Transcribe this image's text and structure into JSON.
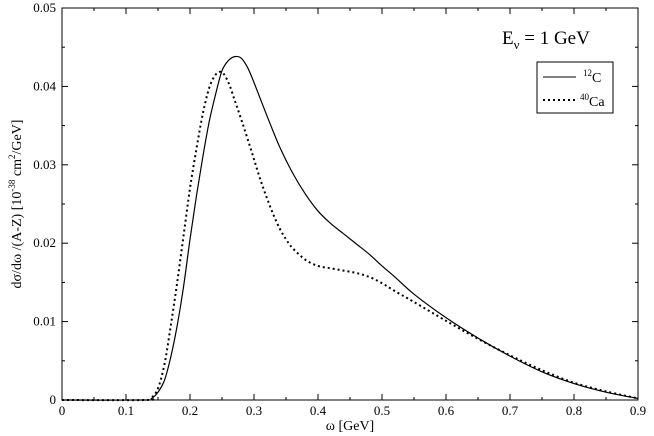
{
  "chart_data": {
    "type": "line",
    "title": "",
    "annotation": {
      "main": "E",
      "sub": "ν",
      "rest": " = 1 GeV"
    },
    "xlabel": "ω [GeV]",
    "ylabel": {
      "part1": "dσ/dω /(A-Z) [10",
      "exp1": "-38",
      "part2": " cm",
      "exp2": "2",
      "part3": "/GeV]"
    },
    "xlim": [
      0,
      0.9
    ],
    "ylim": [
      0,
      0.05
    ],
    "xticks": [
      "0",
      "0.1",
      "0.2",
      "0.3",
      "0.4",
      "0.5",
      "0.6",
      "0.7",
      "0.8",
      "0.9"
    ],
    "xtick_values": [
      0,
      0.1,
      0.2,
      0.3,
      0.4,
      0.5,
      0.6,
      0.7,
      0.8,
      0.9
    ],
    "yticks": [
      "0",
      "0.01",
      "0.02",
      "0.03",
      "0.04",
      "0.05"
    ],
    "ytick_values": [
      0,
      0.01,
      0.02,
      0.03,
      0.04,
      0.05
    ],
    "grid": false,
    "legend_position": "top-right",
    "series": [
      {
        "name": "12C",
        "legend_sup": "12",
        "legend_main": "C",
        "style": "solid",
        "color": "#000000",
        "x": [
          0,
          0.13,
          0.14,
          0.15,
          0.16,
          0.17,
          0.18,
          0.19,
          0.2,
          0.21,
          0.22,
          0.23,
          0.24,
          0.25,
          0.26,
          0.27,
          0.28,
          0.29,
          0.3,
          0.32,
          0.34,
          0.36,
          0.38,
          0.4,
          0.42,
          0.44,
          0.46,
          0.48,
          0.5,
          0.52,
          0.55,
          0.6,
          0.65,
          0.7,
          0.75,
          0.8,
          0.85,
          0.9
        ],
        "y": [
          0,
          0,
          0.0002,
          0.001,
          0.0025,
          0.0055,
          0.0095,
          0.0145,
          0.0205,
          0.026,
          0.031,
          0.0355,
          0.039,
          0.042,
          0.0433,
          0.0438,
          0.0436,
          0.0424,
          0.0405,
          0.0363,
          0.0323,
          0.029,
          0.0263,
          0.0241,
          0.0225,
          0.0212,
          0.0199,
          0.0186,
          0.0171,
          0.0157,
          0.0135,
          0.0105,
          0.0079,
          0.0056,
          0.0036,
          0.0021,
          0.001,
          0.0002
        ]
      },
      {
        "name": "40Ca",
        "legend_sup": "40",
        "legend_main": "Ca",
        "style": "dotted",
        "color": "#000000",
        "x": [
          0,
          0.13,
          0.14,
          0.15,
          0.16,
          0.17,
          0.18,
          0.19,
          0.2,
          0.21,
          0.22,
          0.23,
          0.24,
          0.25,
          0.26,
          0.27,
          0.28,
          0.29,
          0.3,
          0.31,
          0.32,
          0.33,
          0.34,
          0.35,
          0.36,
          0.38,
          0.4,
          0.42,
          0.44,
          0.46,
          0.48,
          0.5,
          0.52,
          0.55,
          0.6,
          0.65,
          0.7,
          0.75,
          0.8,
          0.85,
          0.9
        ],
        "y": [
          0,
          0,
          0.0003,
          0.0015,
          0.0045,
          0.0095,
          0.015,
          0.021,
          0.027,
          0.032,
          0.0365,
          0.0398,
          0.0415,
          0.0418,
          0.0405,
          0.0382,
          0.0358,
          0.0333,
          0.0307,
          0.0281,
          0.0258,
          0.0237,
          0.0219,
          0.0205,
          0.0194,
          0.0179,
          0.0171,
          0.0168,
          0.0165,
          0.0162,
          0.0157,
          0.0149,
          0.0139,
          0.0125,
          0.0101,
          0.0078,
          0.0057,
          0.0038,
          0.0022,
          0.0011,
          0.0002
        ]
      }
    ]
  }
}
